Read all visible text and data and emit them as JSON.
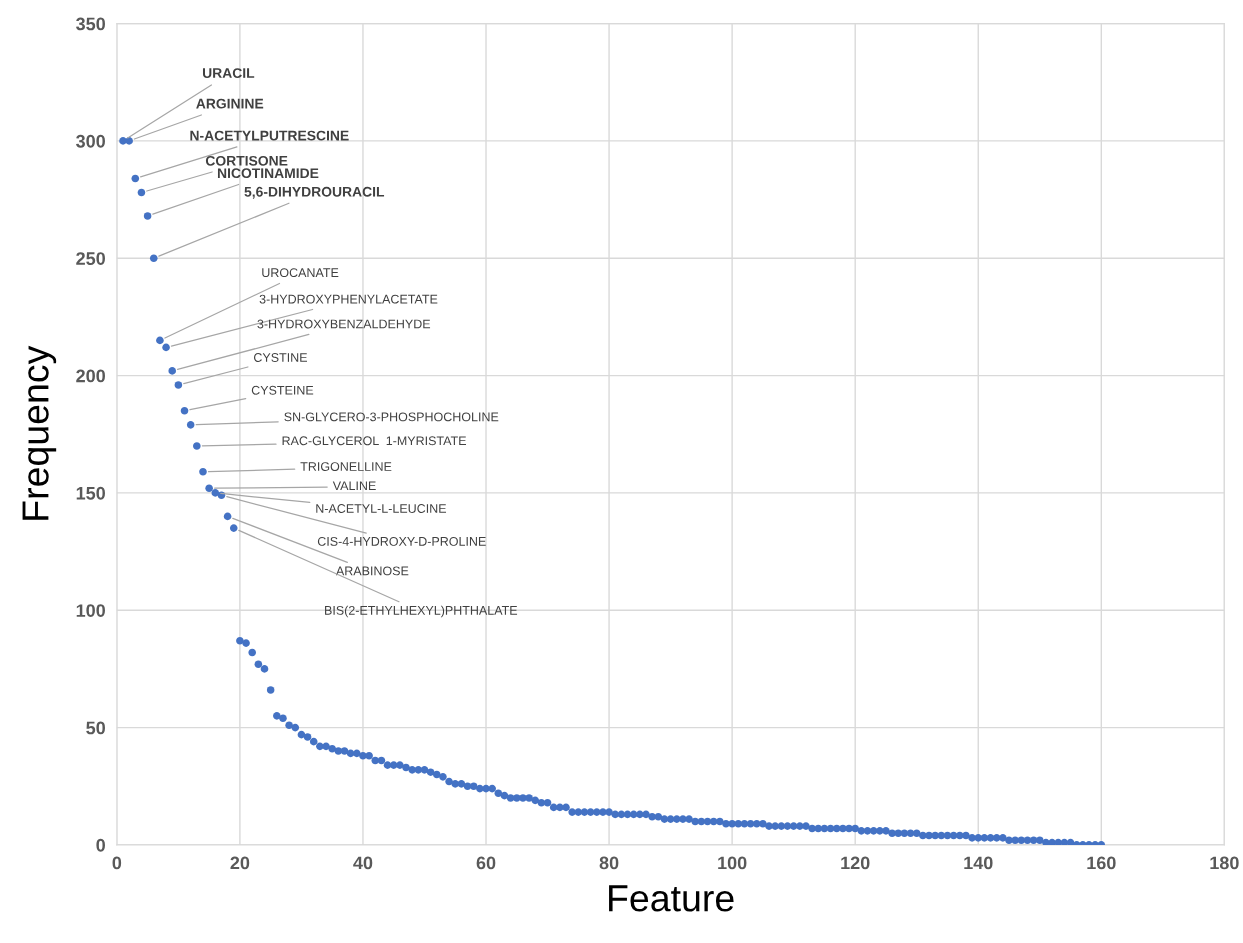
{
  "chart_data": {
    "type": "scatter",
    "xlabel": "Feature",
    "ylabel": "Frequency",
    "xlim": [
      0,
      180
    ],
    "xticks": [
      0,
      20,
      40,
      60,
      80,
      100,
      120,
      140,
      160,
      180
    ],
    "ylim": [
      0,
      350
    ],
    "yticks": [
      0,
      50,
      100,
      150,
      200,
      250,
      300,
      350
    ],
    "grid": true,
    "marker": "circle",
    "series": [
      {
        "color": "#4472c4",
        "x": [
          1,
          2,
          3,
          4,
          5,
          6,
          7,
          8,
          9,
          10,
          11,
          12,
          13,
          14,
          15,
          16,
          17,
          18,
          19,
          20,
          21,
          22,
          23,
          24,
          25,
          26,
          27,
          28,
          29,
          30,
          31,
          32,
          33,
          34,
          35,
          36,
          37,
          38,
          39,
          40,
          41,
          42,
          43,
          44,
          45,
          46,
          47,
          48,
          49,
          50,
          51,
          52,
          53,
          54,
          55,
          56,
          57,
          58,
          59,
          60,
          61,
          62,
          63,
          64,
          65,
          66,
          67,
          68,
          69,
          70,
          71,
          72,
          73,
          74,
          75,
          76,
          77,
          78,
          79,
          80,
          81,
          82,
          83,
          84,
          85,
          86,
          87,
          88,
          89,
          90,
          91,
          92,
          93,
          94,
          95,
          96,
          97,
          98,
          99,
          100,
          101,
          102,
          103,
          104,
          105,
          106,
          107,
          108,
          109,
          110,
          111,
          112,
          113,
          114,
          115,
          116,
          117,
          118,
          119,
          120,
          121,
          122,
          123,
          124,
          125,
          126,
          127,
          128,
          129,
          130,
          131,
          132,
          133,
          134,
          135,
          136,
          137,
          138,
          139,
          140,
          141,
          142,
          143,
          144,
          145,
          146,
          147,
          148,
          149,
          150,
          151,
          152,
          153,
          154,
          155,
          156,
          157,
          158,
          159,
          160
        ],
        "values": [
          300,
          300,
          284,
          278,
          268,
          250,
          215,
          212,
          202,
          196,
          185,
          179,
          170,
          159,
          152,
          150,
          149,
          140,
          135,
          87,
          86,
          82,
          77,
          75,
          66,
          55,
          54,
          51,
          50,
          47,
          46,
          44,
          42,
          42,
          41,
          40,
          40,
          39,
          39,
          38,
          38,
          36,
          36,
          34,
          34,
          34,
          33,
          32,
          32,
          32,
          31,
          30,
          29,
          27,
          26,
          26,
          25,
          25,
          24,
          24,
          24,
          22,
          21,
          20,
          20,
          20,
          20,
          19,
          18,
          18,
          16,
          16,
          16,
          14,
          14,
          14,
          14,
          14,
          14,
          14,
          13,
          13,
          13,
          13,
          13,
          13,
          12,
          12,
          11,
          11,
          11,
          11,
          11,
          10,
          10,
          10,
          10,
          10,
          9,
          9,
          9,
          9,
          9,
          9,
          9,
          8,
          8,
          8,
          8,
          8,
          8,
          8,
          7,
          7,
          7,
          7,
          7,
          7,
          7,
          7,
          6,
          6,
          6,
          6,
          6,
          5,
          5,
          5,
          5,
          5,
          4,
          4,
          4,
          4,
          4,
          4,
          4,
          4,
          3,
          3,
          3,
          3,
          3,
          3,
          2,
          2,
          2,
          2,
          2,
          2,
          1,
          1,
          1,
          1,
          1,
          0,
          0,
          0,
          0,
          0
        ]
      }
    ],
    "annotations": [
      {
        "text": "URACIL",
        "x": 1,
        "y": 300
      },
      {
        "text": "ARGININE",
        "x": 2,
        "y": 300
      },
      {
        "text": "N-ACETYLPUTRESCINE",
        "x": 3,
        "y": 284
      },
      {
        "text": "CORTISONE",
        "x": 4,
        "y": 278
      },
      {
        "text": "NICOTINAMIDE",
        "x": 5,
        "y": 268
      },
      {
        "text": "5,6-DIHYDROURACIL",
        "x": 6,
        "y": 250
      },
      {
        "text": "UROCANATE",
        "x": 7,
        "y": 215
      },
      {
        "text": "3-HYDROXYPHENYLACETATE",
        "x": 8,
        "y": 212
      },
      {
        "text": "3-HYDROXYBENZALDEHYDE",
        "x": 9,
        "y": 202
      },
      {
        "text": "CYSTINE",
        "x": 10,
        "y": 196
      },
      {
        "text": "CYSTEINE",
        "x": 11,
        "y": 185
      },
      {
        "text": "SN-GLYCERO-3-PHOSPHOCHOLINE",
        "x": 12,
        "y": 179
      },
      {
        "text": "RAC-GLYCEROL  1-MYRISTATE",
        "x": 13,
        "y": 170
      },
      {
        "text": "TRIGONELLINE",
        "x": 14,
        "y": 159
      },
      {
        "text": "VALINE",
        "x": 15,
        "y": 152
      },
      {
        "text": "N-ACETYL-L-LEUCINE",
        "x": 16,
        "y": 150
      },
      {
        "text": "CIS-4-HYDROXY-D-PROLINE",
        "x": 17,
        "y": 149
      },
      {
        "text": "ARABINOSE",
        "x": 18,
        "y": 140
      },
      {
        "text": "BIS(2-ETHYLHEXYL)PHTHALATE",
        "x": 19,
        "y": 135
      }
    ]
  }
}
